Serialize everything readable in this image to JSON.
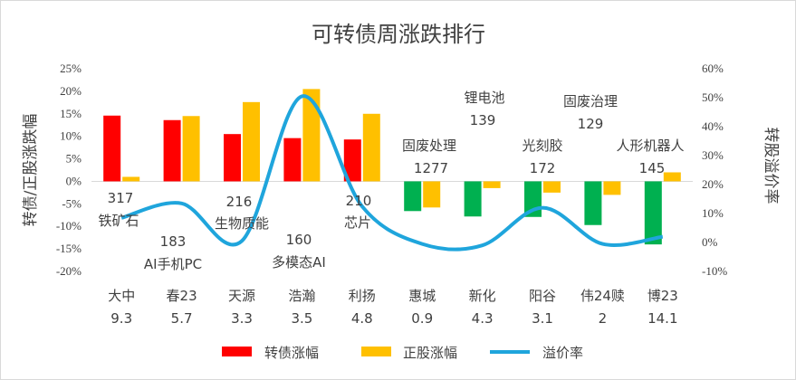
{
  "chart_data": {
    "type": "bar",
    "title": "可转债周涨跌排行",
    "ylabel": "转债/正股涨跌幅",
    "y2label": "转股溢价率",
    "ylim": [
      -20,
      25
    ],
    "yticks": [
      "25%",
      "20%",
      "15%",
      "10%",
      "5%",
      "0%",
      "-5%",
      "-10%",
      "-15%",
      "-20%"
    ],
    "y2lim": [
      -10,
      60
    ],
    "y2ticks": [
      "60%",
      "50%",
      "40%",
      "30%",
      "20%",
      "10%",
      "0%",
      "-10%"
    ],
    "categories": [
      {
        "name": "大中",
        "value": "9.3"
      },
      {
        "name": "春23",
        "value": "5.7"
      },
      {
        "name": "天源",
        "value": "3.3"
      },
      {
        "name": "浩瀚",
        "value": "3.5"
      },
      {
        "name": "利扬",
        "value": "4.8"
      },
      {
        "name": "惠城",
        "value": "0.9"
      },
      {
        "name": "新化",
        "value": "4.3"
      },
      {
        "name": "阳谷",
        "value": "3.1"
      },
      {
        "name": "伟24赎",
        "value": "2"
      },
      {
        "name": "博23",
        "value": "14.1"
      }
    ],
    "series": [
      {
        "name": "转债涨幅",
        "type": "bar",
        "axis": "left",
        "color": "#ff0000",
        "values": [
          14.6,
          13.6,
          10.5,
          9.6,
          9.3,
          -6.6,
          -7.8,
          -7.9,
          -9.7,
          -14.0
        ]
      },
      {
        "name": "正股涨幅",
        "type": "bar",
        "axis": "left",
        "color": "#ffc000",
        "values": [
          1.0,
          14.5,
          17.6,
          20.5,
          15.0,
          -5.8,
          -1.5,
          -2.5,
          -3.0,
          2.0
        ]
      },
      {
        "name": "溢价率",
        "type": "line",
        "axis": "right",
        "color": "#1fa5dc",
        "values": [
          8.5,
          13.5,
          0.5,
          50.5,
          12.5,
          -0.5,
          -1.0,
          12.0,
          -0.5,
          2.0
        ]
      }
    ],
    "annotations": [
      {
        "index": 0,
        "count": "317",
        "theme": "铁矿石"
      },
      {
        "index": 1,
        "count": "183",
        "theme": "AI手机PC"
      },
      {
        "index": 2,
        "count": "216",
        "theme": "生物质能"
      },
      {
        "index": 3,
        "count": "160",
        "theme": "多模态AI"
      },
      {
        "index": 4,
        "count": "210",
        "theme": "芯片"
      },
      {
        "index": 5,
        "count": "1277",
        "theme": "固废处理"
      },
      {
        "index": 6,
        "count": "139",
        "theme": "锂电池"
      },
      {
        "index": 7,
        "count": "172",
        "theme": "光刻胶"
      },
      {
        "index": 8,
        "count": "129",
        "theme": "固废治理"
      },
      {
        "index": 9,
        "count": "145",
        "theme": "人形机器人"
      }
    ],
    "legend": "bottom",
    "grid": false
  }
}
